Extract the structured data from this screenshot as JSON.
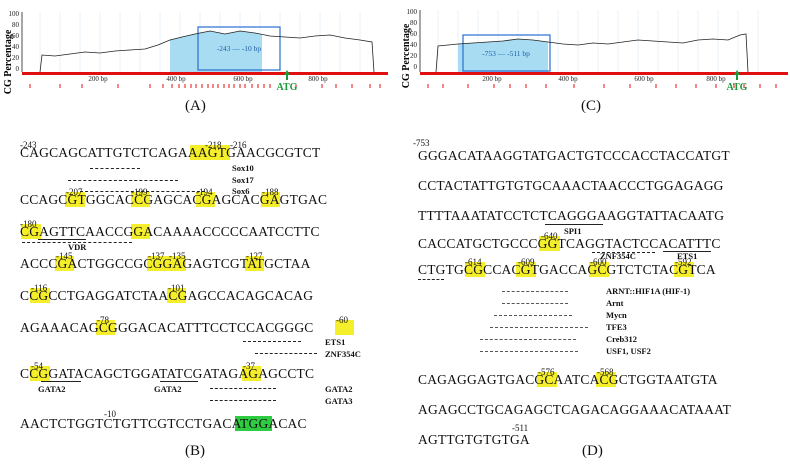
{
  "panels": {
    "A": {
      "label": "(A)",
      "ylabel": "CG Percentage",
      "yticks": [
        "100",
        "80",
        "60",
        "40",
        "20",
        "0"
      ],
      "xticks": [
        "200 bp",
        "400 bp",
        "600 bp",
        "800 bp"
      ],
      "window_text": "-243 — -10 bp",
      "atg": "ATG"
    },
    "C": {
      "label": "(C)",
      "ylabel": "CG Percentage",
      "yticks": [
        "100",
        "80",
        "60",
        "40",
        "20",
        "0"
      ],
      "xticks": [
        "200 bp",
        "400 bp",
        "600 bp",
        "800 bp"
      ],
      "window_text": "-753 — -511 bp",
      "atg": "ATG"
    },
    "B": {
      "label": "(B)",
      "start_pos": "-243",
      "lines": [
        "CAGCAGCATTGTCTCAGAAAGTGAACGCGTCT",
        "CCAGCGTGGCACCGAGCACGAGCACGAGTGAC",
        "CGAGTTCAACCGGACAAAACCCCCAATCCTTC",
        "ACCCGACTGGCCGCGGAGAGTCGTATGCTAA",
        "CCGCCTGAGGATCTAACGAGCCACAGCACAG",
        "AGAAACAGCGGGACACATTTCCTCCACGGGC",
        "CCGGATACAGCTGGATATCGATAGAGAGCCTC",
        "AACTCTGGTCTGTTCGTCCTGACATGGACAC"
      ],
      "positions": [
        "-218",
        "-216",
        "-207",
        "-199",
        "-194",
        "-188",
        "-180",
        "-145",
        "-137",
        "-135",
        "-127",
        "-116",
        "-101",
        "-78",
        "-60",
        "-54",
        "-37",
        "-10"
      ],
      "tf_labels": [
        "Sox10",
        "Sox17",
        "Sox6",
        "VDR",
        "ETS1",
        "ZNF354C",
        "GATA2",
        "GATA2",
        "GATA2",
        "GATA3"
      ]
    },
    "D": {
      "label": "(D)",
      "start_pos": "-753",
      "end_pos": "-511",
      "lines": [
        "GGGACATAAGGTATGACTGTCCCACCTACCATGT",
        "CCTACTATTGTGTGCAAACTAACCCTGGAGAGG",
        "TTTTAAATATCCTCTCAGGGAAGGTATTACAATG",
        "CACCATGCTGCCCGGTCAGGTACTCCACATTTC",
        "CTGTGCGCCACGTGACCAGCGTCTCTACGTCA",
        "CAGAGGAGTGACGCAATCACGCTGGTAATGTA",
        "AGAGCCTGCAGAGCTCAGACAGGAAACATAAAT",
        "AGTTGTGTGTGA"
      ],
      "positions": [
        "-640",
        "-614",
        "-609",
        "-600",
        "-592",
        "-576",
        "-568"
      ],
      "tf_labels": [
        "SPI1",
        "ZNF354C",
        "ETS1",
        "ARNT::HIF1A (HIF-1)",
        "Arnt",
        "Mycn",
        "TFE3",
        "Creb312",
        "USF1, USF2"
      ]
    }
  },
  "colors": {
    "cg_highlight": "#f5ee2a",
    "atg_highlight": "#2ecc40",
    "island": "#a8dcf2",
    "window": "#2a6fd0",
    "axis": "#e01010",
    "atg_text": "#1a9a3a"
  }
}
